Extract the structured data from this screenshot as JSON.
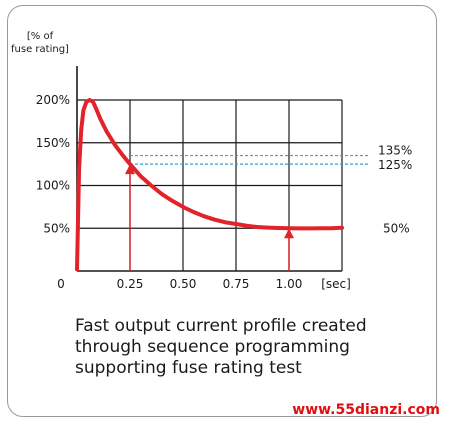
{
  "chart_data": {
    "type": "line",
    "ylabel_lines": [
      "[% of",
      "fuse rating]"
    ],
    "xunit": "[sec]",
    "xlim": [
      0,
      1.25
    ],
    "ylim": [
      0,
      200
    ],
    "x_ticks": [
      {
        "v": 0,
        "label": "0"
      },
      {
        "v": 0.25,
        "label": "0.25"
      },
      {
        "v": 0.5,
        "label": "0.50"
      },
      {
        "v": 0.75,
        "label": "0.75"
      },
      {
        "v": 1.0,
        "label": "1.00"
      }
    ],
    "x_gridlines": [
      0.25,
      0.5,
      0.75,
      1.0,
      1.25
    ],
    "y_ticks": [
      {
        "v": 50,
        "label": "50%"
      },
      {
        "v": 100,
        "label": "100%"
      },
      {
        "v": 150,
        "label": "150%"
      },
      {
        "v": 200,
        "label": "200%"
      }
    ],
    "y_gridlines": [
      50,
      100,
      150,
      200
    ],
    "reference_lines": [
      {
        "y": 135,
        "label": "135%"
      },
      {
        "y": 125,
        "label": "125%"
      }
    ],
    "side_labels": [
      {
        "y": 50,
        "label": "50%"
      }
    ],
    "series": [
      {
        "color": "#e2232a",
        "x": [
          0,
          0.01,
          0.02,
          0.03,
          0.045,
          0.06,
          0.075,
          0.09,
          0.11,
          0.14,
          0.18,
          0.22,
          0.25,
          0.3,
          0.35,
          0.4,
          0.45,
          0.5,
          0.55,
          0.6,
          0.65,
          0.7,
          0.75,
          0.8,
          0.85,
          0.9,
          0.95,
          1.0,
          1.05,
          1.1,
          1.15,
          1.2,
          1.25
        ],
        "y": [
          2,
          120,
          165,
          188,
          198,
          200,
          198,
          190,
          178,
          163,
          147,
          134,
          125,
          111,
          100,
          90,
          82,
          75,
          69,
          64,
          60,
          57,
          55,
          53,
          51.5,
          50.8,
          50.3,
          50,
          49.8,
          49.8,
          49.9,
          50,
          50.5
        ]
      }
    ],
    "arrows": [
      {
        "x": 0.25,
        "y": 125
      },
      {
        "x": 1.0,
        "y": 50
      }
    ],
    "grid": true
  },
  "caption_lines": [
    "Fast output current profile created",
    "through sequence programming",
    "supporting fuse rating test"
  ],
  "watermark": "www.55dianzi.com",
  "colors": {
    "curve": "#e2232a",
    "grid": "#1a1a1a",
    "reference": "#3aa0dc",
    "text": "#1a1a1a"
  }
}
